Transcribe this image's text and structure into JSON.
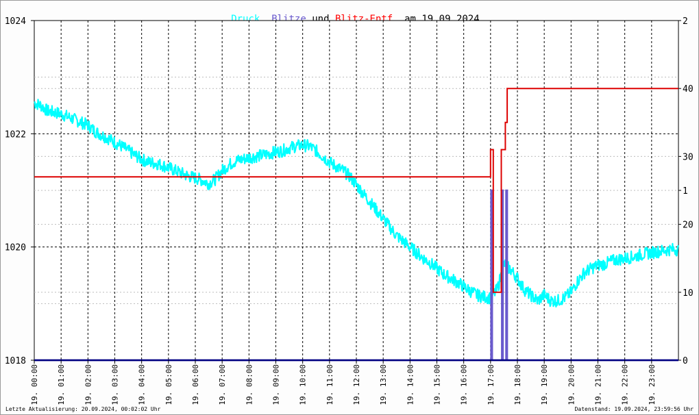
{
  "title": {
    "parts": [
      {
        "text": "Druck,",
        "color": "#00ffff"
      },
      {
        "text": " ",
        "color": "#000000"
      },
      {
        "text": "Blitze",
        "color": "#6a5acd"
      },
      {
        "text": " und ",
        "color": "#000000"
      },
      {
        "text": "Blitz-Entf.",
        "color": "#ff0000"
      },
      {
        "text": " am 19.09.2024",
        "color": "#000000"
      }
    ]
  },
  "footer": {
    "left": "Letzte Aktualisierung: 20.09.2024, 00:02:02 Uhr",
    "right": "Datenstand: 19.09.2024, 23:59:56 Uhr"
  },
  "colors": {
    "pressure": "#00ffff",
    "strikes": "#6a5acd",
    "distance": "#dd0000",
    "baseline": "#000080",
    "grid": "#000000",
    "grid_minor": "#bbbbbb"
  },
  "chart_data": {
    "type": "line",
    "x_ticks": [
      "19. 00:00",
      "19. 01:00",
      "19. 02:00",
      "19. 03:00",
      "19. 04:00",
      "19. 05:00",
      "19. 06:00",
      "19. 07:00",
      "19. 08:00",
      "19. 09:00",
      "19. 10:00",
      "19. 11:00",
      "19. 12:00",
      "19. 13:00",
      "19. 14:00",
      "19. 15:00",
      "19. 16:00",
      "19. 17:00",
      "19. 18:00",
      "19. 19:00",
      "19. 20:00",
      "19. 21:00",
      "19. 22:00",
      "19. 23:00"
    ],
    "x_range_hours": [
      0,
      24
    ],
    "y_left": {
      "ticks": [
        "1018",
        "1020",
        "1022",
        "1024"
      ],
      "range": [
        1018,
        1024
      ]
    },
    "y_right_strikes": {
      "ticks": [
        "0",
        "1",
        "2"
      ],
      "range": [
        0,
        2
      ]
    },
    "y_right_distance": {
      "ticks": [
        "10",
        "20",
        "30",
        "40"
      ],
      "range": [
        0,
        50
      ]
    },
    "grid": true,
    "series": [
      {
        "name": "Druck",
        "axis": "left",
        "x": [
          0,
          0.25,
          0.5,
          0.75,
          1,
          1.25,
          1.5,
          1.75,
          2,
          2.25,
          2.5,
          2.75,
          3,
          3.25,
          3.5,
          3.75,
          4,
          4.25,
          4.5,
          4.75,
          5,
          5.25,
          5.5,
          5.75,
          6,
          6.25,
          6.5,
          6.75,
          7,
          7.25,
          7.5,
          7.75,
          8,
          8.25,
          8.5,
          8.75,
          9,
          9.25,
          9.5,
          9.75,
          10,
          10.25,
          10.5,
          10.75,
          11,
          11.25,
          11.5,
          11.75,
          12,
          12.25,
          12.5,
          12.75,
          13,
          13.25,
          13.5,
          13.75,
          14,
          14.25,
          14.5,
          14.75,
          15,
          15.25,
          15.5,
          15.75,
          16,
          16.25,
          16.5,
          16.75,
          17,
          17.25,
          17.5,
          17.75,
          18,
          18.25,
          18.5,
          18.75,
          19,
          19.25,
          19.5,
          19.75,
          20,
          20.25,
          20.5,
          20.75,
          21,
          21.25,
          21.5,
          21.75,
          22,
          22.25,
          22.5,
          22.75,
          23,
          23.25,
          23.5,
          23.75,
          24
        ],
        "y": [
          1022.55,
          1022.5,
          1022.4,
          1022.38,
          1022.35,
          1022.3,
          1022.25,
          1022.2,
          1022.15,
          1022.05,
          1021.98,
          1021.92,
          1021.85,
          1021.78,
          1021.7,
          1021.62,
          1021.55,
          1021.5,
          1021.48,
          1021.45,
          1021.4,
          1021.35,
          1021.3,
          1021.25,
          1021.22,
          1021.18,
          1021.12,
          1021.2,
          1021.35,
          1021.45,
          1021.52,
          1021.55,
          1021.58,
          1021.6,
          1021.62,
          1021.65,
          1021.68,
          1021.7,
          1021.75,
          1021.78,
          1021.8,
          1021.78,
          1021.7,
          1021.6,
          1021.5,
          1021.42,
          1021.35,
          1021.25,
          1021.1,
          1020.95,
          1020.8,
          1020.65,
          1020.5,
          1020.35,
          1020.2,
          1020.1,
          1020.0,
          1019.9,
          1019.8,
          1019.72,
          1019.62,
          1019.52,
          1019.45,
          1019.38,
          1019.3,
          1019.22,
          1019.15,
          1019.12,
          1019.1,
          1019.25,
          1019.7,
          1019.6,
          1019.45,
          1019.25,
          1019.15,
          1019.05,
          1019.15,
          1019.05,
          1019.05,
          1019.1,
          1019.2,
          1019.4,
          1019.55,
          1019.62,
          1019.68,
          1019.7,
          1019.75,
          1019.78,
          1019.8,
          1019.82,
          1019.85,
          1019.88,
          1019.9,
          1019.92,
          1019.94,
          1019.96,
          1019.95
        ]
      },
      {
        "name": "Blitze",
        "axis": "right_strikes",
        "x": [
          0,
          17.02,
          17.02,
          17.06,
          17.06,
          17.1,
          17.1,
          17.42,
          17.42,
          17.46,
          17.46,
          17.58,
          17.58,
          17.62,
          17.62,
          24
        ],
        "y": [
          0,
          0,
          1,
          1,
          0,
          0,
          0,
          0,
          1,
          1,
          0,
          0,
          1,
          1,
          0,
          0
        ]
      },
      {
        "name": "Blitz-Entf.",
        "axis": "right_distance",
        "x": [
          0,
          17.0,
          17.0,
          17.1,
          17.1,
          17.4,
          17.4,
          17.55,
          17.55,
          17.62,
          17.62,
          24
        ],
        "y": [
          27,
          27,
          31,
          31,
          10,
          10,
          31,
          31,
          35,
          35,
          40,
          40
        ]
      }
    ]
  }
}
